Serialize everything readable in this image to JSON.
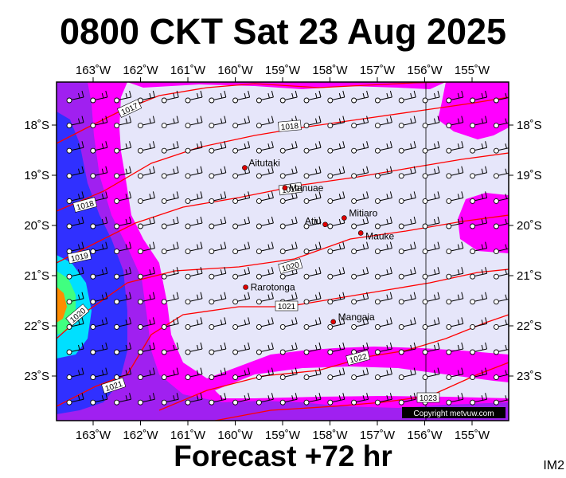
{
  "title": "0800 CKT Sat 23 Aug 2025",
  "footer": "Forecast +72 hr",
  "corner_label": "IM2",
  "copyright": "Copyright metvuw.com",
  "lon_labels": [
    "163˚W",
    "162˚W",
    "161˚W",
    "160˚W",
    "159˚W",
    "158˚W",
    "157˚W",
    "156˚W",
    "155˚W"
  ],
  "lat_labels": [
    "18˚S",
    "19˚S",
    "20˚S",
    "21˚S",
    "22˚S",
    "23˚S"
  ],
  "places": [
    {
      "name": "Aitutaki",
      "lon": -159.8,
      "lat": -18.85
    },
    {
      "name": "Manuae",
      "lon": -158.95,
      "lat": -19.25
    },
    {
      "name": "Atiu",
      "lon": -158.1,
      "lat": -19.98
    },
    {
      "name": "Mitiaro",
      "lon": -157.7,
      "lat": -19.85
    },
    {
      "name": "Mauke",
      "lon": -157.35,
      "lat": -20.15
    },
    {
      "name": "Rarotonga",
      "lon": -159.78,
      "lat": -21.23
    },
    {
      "name": "Mangaia",
      "lon": -157.93,
      "lat": -21.92
    }
  ],
  "isobar_labels": [
    "1017",
    "1018",
    "1018",
    "1019",
    "1019",
    "1020",
    "1020",
    "1021",
    "1021",
    "1022",
    "1023"
  ],
  "colors": {
    "background": "#e6e6fa",
    "magenta": "#ff00ff",
    "purple": "#a020f0",
    "blue": "#3030ff",
    "cyan": "#00e0ff",
    "orange": "#ff8c00",
    "isobar": "#ff0000",
    "place_dot": "#e00000"
  }
}
